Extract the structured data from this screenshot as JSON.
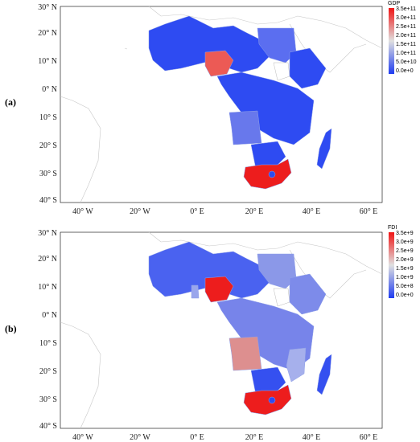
{
  "colors": {
    "scale_low": "#1f3cf0",
    "scale_mid": "#e0e0e0",
    "scale_high": "#f01414",
    "country_border": "#8fa0e8",
    "coast": "#c8c8c8"
  },
  "axes": {
    "lat_labels": [
      "30° N",
      "20° N",
      "10° N",
      "0° N",
      "10° S",
      "20° S",
      "30° S",
      "40° S"
    ],
    "lon_labels": [
      "40° W",
      "20° W",
      "0° E",
      "20° E",
      "40° E",
      "60° E"
    ]
  },
  "panels": [
    {
      "label": "(a)",
      "legend_title": "GDP",
      "legend_ticks": [
        "3.5e+11",
        "3.0e+11",
        "2.5e+11",
        "2.0e+11",
        "1.5e+11",
        "1.0e+11",
        "5.0e+10",
        "0.0e+0"
      ],
      "highlights": [
        {
          "country": "Nigeria",
          "level": 0.8
        },
        {
          "country": "South Africa",
          "level": 0.97
        },
        {
          "country": "Angola",
          "level": 0.33
        },
        {
          "country": "Sudan",
          "level": 0.23
        }
      ]
    },
    {
      "label": "(b)",
      "legend_title": "FDI",
      "legend_ticks": [
        "3.5e+9",
        "3.0e+9",
        "2.5e+9",
        "2.0e+9",
        "1.5e+9",
        "1.0e+9",
        "5.0e+8",
        "0.0e+0"
      ],
      "highlights": [
        {
          "country": "Nigeria",
          "level": 0.97
        },
        {
          "country": "South Africa",
          "level": 0.97
        },
        {
          "country": "Angola",
          "level": 0.6
        },
        {
          "country": "Sudan",
          "level": 0.4
        },
        {
          "country": "Ethiopia",
          "level": 0.3
        },
        {
          "country": "Ghana",
          "level": 0.4
        },
        {
          "country": "Mozambique",
          "level": 0.45
        },
        {
          "country": "DR Congo",
          "level": 0.35
        }
      ]
    }
  ]
}
